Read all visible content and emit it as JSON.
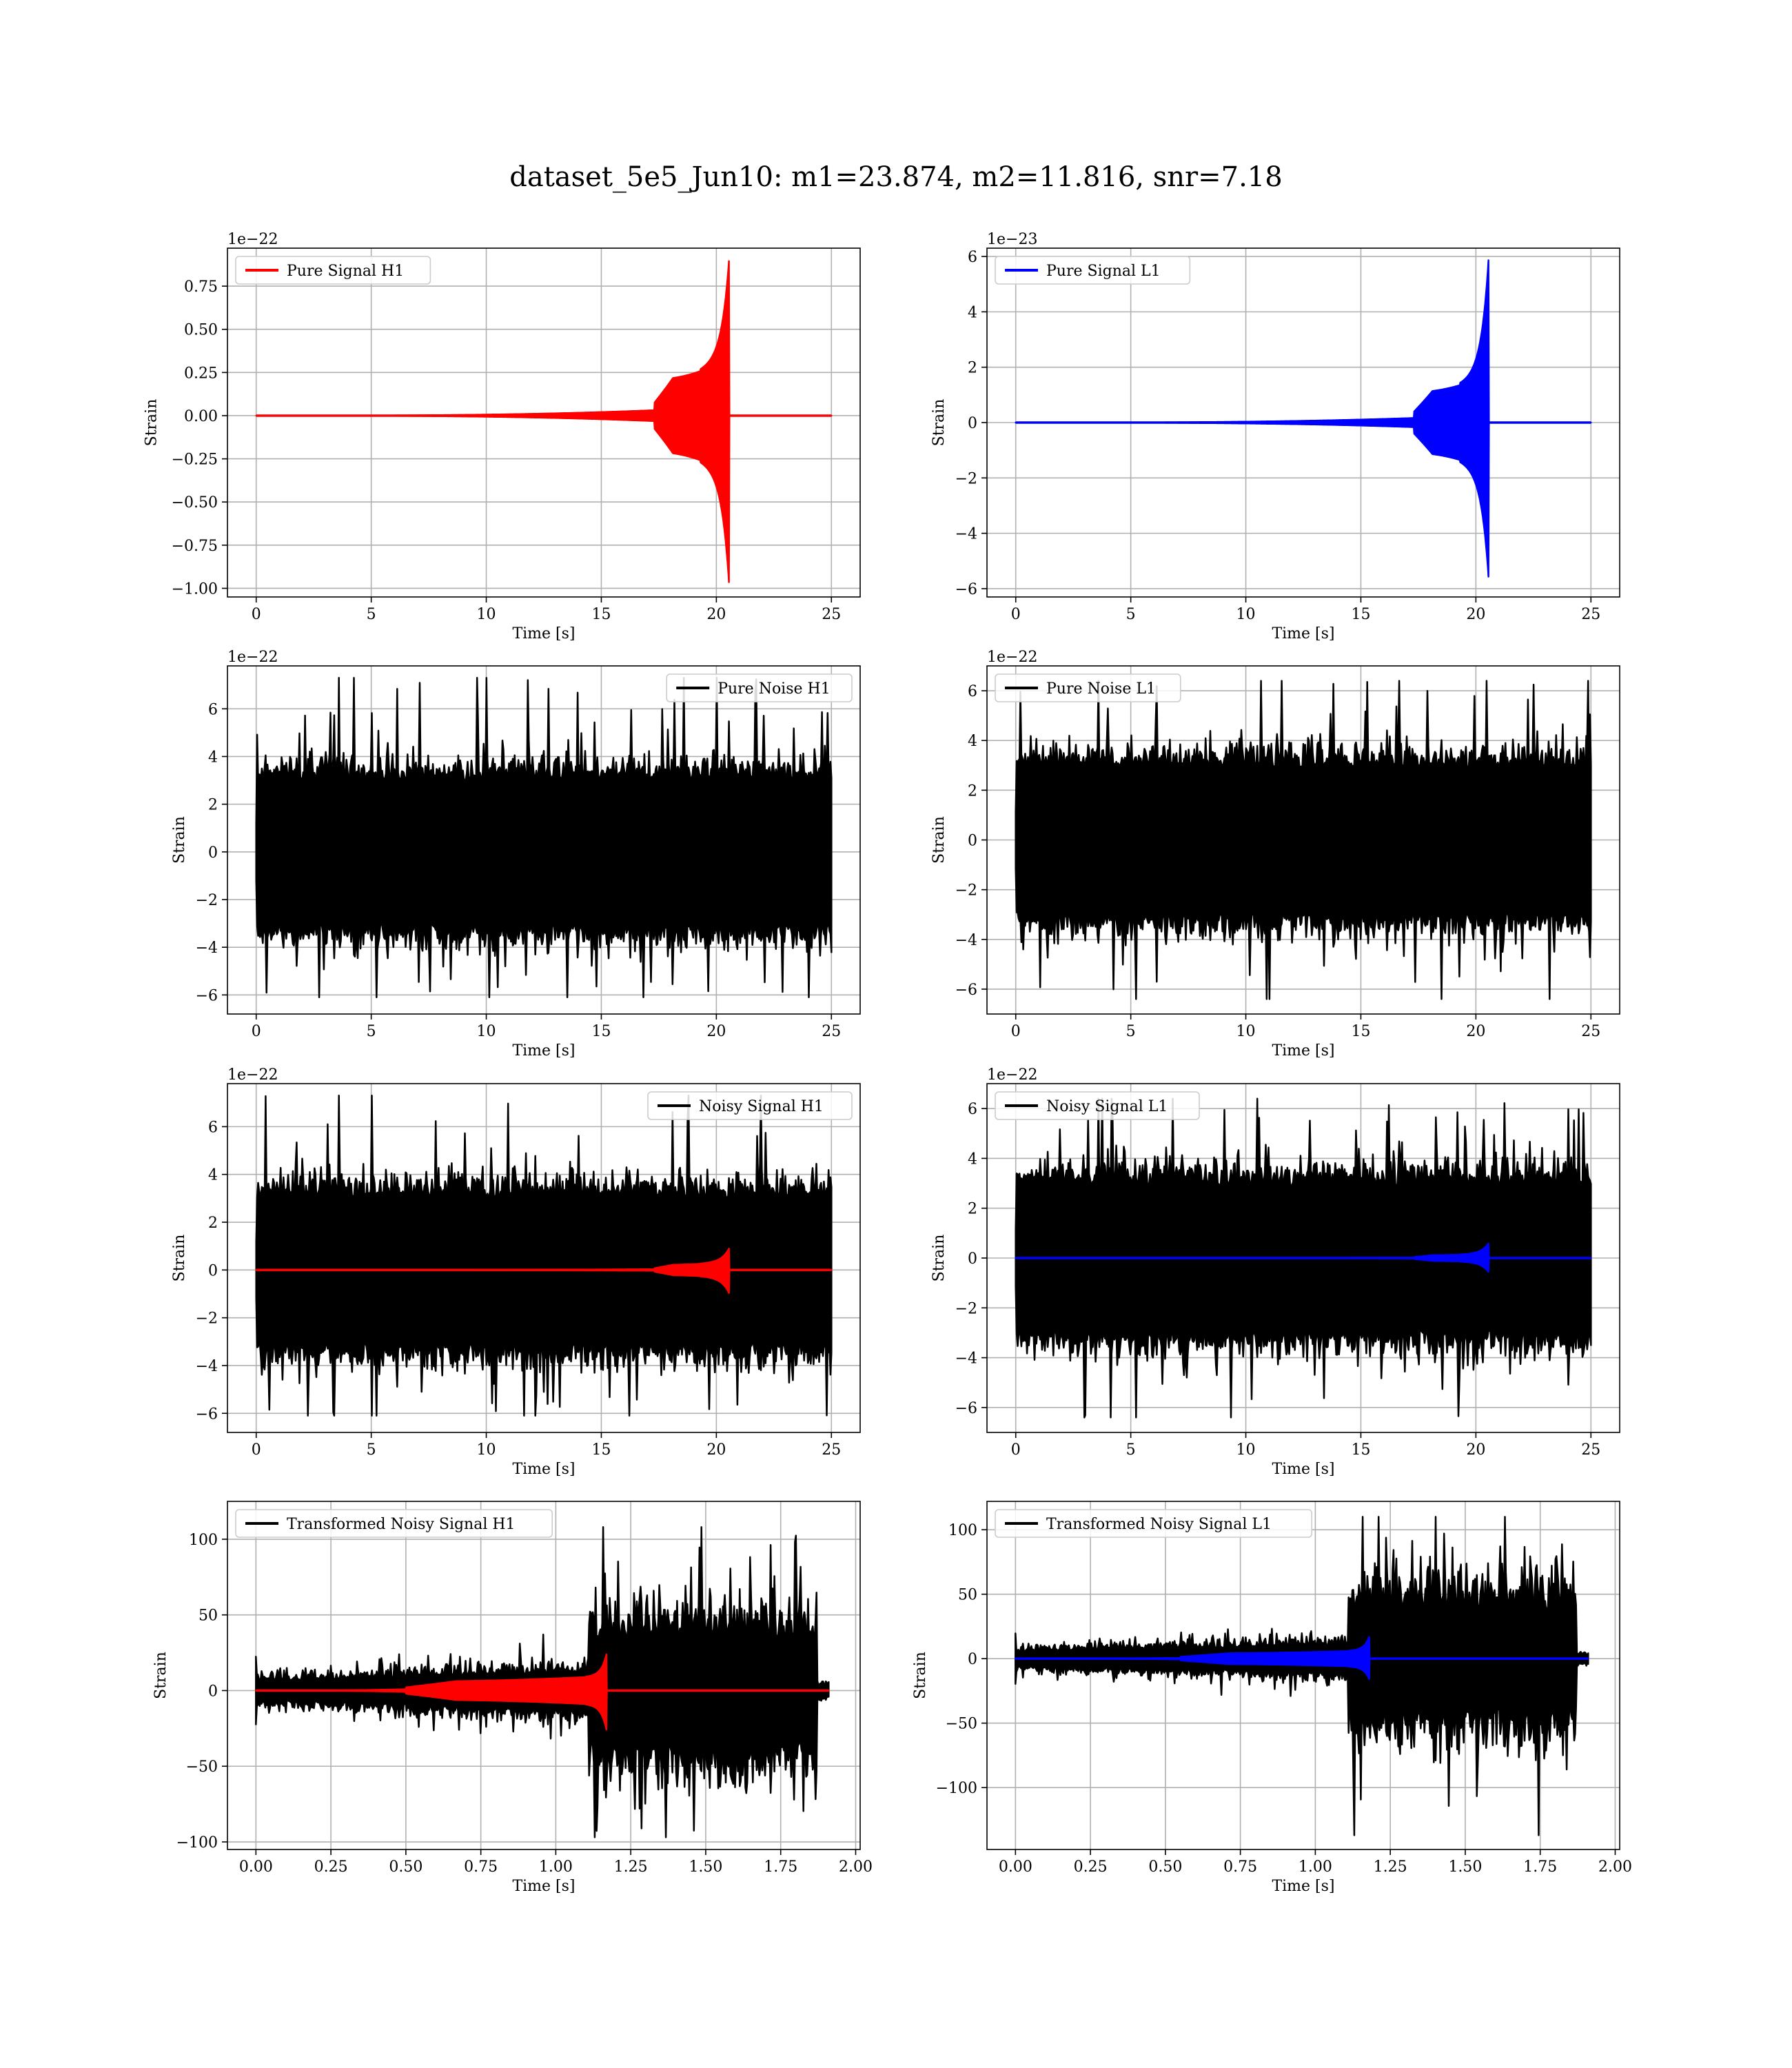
{
  "figure": {
    "title": "dataset_5e5_Jun10: m1=23.874, m2=11.816, snr=7.18"
  },
  "chart_data": [
    {
      "type": "line",
      "legend": "Pure Signal H1",
      "legend_position": "upper-left",
      "xlabel": "Time [s]",
      "ylabel": "Strain",
      "offset_text": "1e−22",
      "xlim": [
        -1.25,
        26.25
      ],
      "ylim": [
        -1.05,
        0.97
      ],
      "xticks": [
        0,
        5,
        10,
        15,
        20,
        25
      ],
      "xtick_labels": [
        "0",
        "5",
        "10",
        "15",
        "20",
        "25"
      ],
      "yticks": [
        -1.0,
        -0.75,
        -0.5,
        -0.25,
        0.0,
        0.25,
        0.5,
        0.75
      ],
      "ytick_labels": [
        "−1.00",
        "−0.75",
        "−0.50",
        "−0.25",
        "0.00",
        "0.25",
        "0.50",
        "0.75"
      ],
      "grid": true,
      "series": [
        {
          "kind": "chirp",
          "color": "#ff0000",
          "x_start": 0,
          "x_end": 25,
          "t_merge": 20.55,
          "plateau_start": 17.3,
          "plateau_amp": 0.21,
          "peak_top": 0.9,
          "peak_bottom": -0.97
        }
      ]
    },
    {
      "type": "line",
      "legend": "Pure Signal L1",
      "legend_position": "upper-left",
      "xlabel": "Time [s]",
      "ylabel": "Strain",
      "offset_text": "1e−23",
      "xlim": [
        -1.25,
        26.25
      ],
      "ylim": [
        -6.3,
        6.3
      ],
      "xticks": [
        0,
        5,
        10,
        15,
        20,
        25
      ],
      "xtick_labels": [
        "0",
        "5",
        "10",
        "15",
        "20",
        "25"
      ],
      "yticks": [
        -6,
        -4,
        -2,
        0,
        2,
        4,
        6
      ],
      "ytick_labels": [
        "−6",
        "−4",
        "−2",
        "0",
        "2",
        "4",
        "6"
      ],
      "grid": true,
      "series": [
        {
          "kind": "chirp",
          "color": "#0000ff",
          "x_start": 0,
          "x_end": 25,
          "t_merge": 20.55,
          "plateau_start": 17.3,
          "plateau_amp": 1.1,
          "peak_top": 5.9,
          "peak_bottom": -5.6
        }
      ]
    },
    {
      "type": "line",
      "legend": "Pure Noise H1",
      "legend_position": "upper-right",
      "xlabel": "Time [s]",
      "ylabel": "Strain",
      "offset_text": "1e−22",
      "xlim": [
        -1.25,
        26.25
      ],
      "ylim": [
        -6.8,
        7.8
      ],
      "xticks": [
        0,
        5,
        10,
        15,
        20,
        25
      ],
      "xtick_labels": [
        "0",
        "5",
        "10",
        "15",
        "20",
        "25"
      ],
      "yticks": [
        -6,
        -4,
        -2,
        0,
        2,
        4,
        6
      ],
      "ytick_labels": [
        "−6",
        "−4",
        "−2",
        "0",
        "2",
        "4",
        "6"
      ],
      "grid": true,
      "series": [
        {
          "kind": "noise",
          "color": "#000000",
          "x_start": 0,
          "x_end": 25,
          "body": 3.0,
          "spike": 7.3,
          "low": -6.1
        }
      ]
    },
    {
      "type": "line",
      "legend": "Pure Noise L1",
      "legend_position": "upper-left",
      "xlabel": "Time [s]",
      "ylabel": "Strain",
      "offset_text": "1e−22",
      "xlim": [
        -1.25,
        26.25
      ],
      "ylim": [
        -7.0,
        7.0
      ],
      "xticks": [
        0,
        5,
        10,
        15,
        20,
        25
      ],
      "xtick_labels": [
        "0",
        "5",
        "10",
        "15",
        "20",
        "25"
      ],
      "yticks": [
        -6,
        -4,
        -2,
        0,
        2,
        4,
        6
      ],
      "ytick_labels": [
        "−6",
        "−4",
        "−2",
        "0",
        "2",
        "4",
        "6"
      ],
      "grid": true,
      "series": [
        {
          "kind": "noise",
          "color": "#000000",
          "x_start": 0,
          "x_end": 25,
          "body": 2.9,
          "spike": 6.4,
          "low": -6.4
        }
      ]
    },
    {
      "type": "line",
      "legend": "Noisy Signal H1",
      "legend_position": "upper-right",
      "xlabel": "Time [s]",
      "ylabel": "Strain",
      "offset_text": "1e−22",
      "xlim": [
        -1.25,
        26.25
      ],
      "ylim": [
        -6.8,
        7.8
      ],
      "xticks": [
        0,
        5,
        10,
        15,
        20,
        25
      ],
      "xtick_labels": [
        "0",
        "5",
        "10",
        "15",
        "20",
        "25"
      ],
      "yticks": [
        -6,
        -4,
        -2,
        0,
        2,
        4,
        6
      ],
      "ytick_labels": [
        "−6",
        "−4",
        "−2",
        "0",
        "2",
        "4",
        "6"
      ],
      "grid": true,
      "series": [
        {
          "kind": "noise",
          "color": "#000000",
          "x_start": 0,
          "x_end": 25,
          "body": 3.0,
          "spike": 7.3,
          "low": -6.1
        },
        {
          "kind": "chirp",
          "color": "#ff0000",
          "x_start": 0,
          "x_end": 25,
          "t_merge": 20.55,
          "plateau_start": 17.3,
          "plateau_amp": 0.21,
          "peak_top": 0.9,
          "peak_bottom": -0.97
        }
      ]
    },
    {
      "type": "line",
      "legend": "Noisy Signal L1",
      "legend_position": "upper-left",
      "xlabel": "Time [s]",
      "ylabel": "Strain",
      "offset_text": "1e−22",
      "xlim": [
        -1.25,
        26.25
      ],
      "ylim": [
        -7.0,
        7.0
      ],
      "xticks": [
        0,
        5,
        10,
        15,
        20,
        25
      ],
      "xtick_labels": [
        "0",
        "5",
        "10",
        "15",
        "20",
        "25"
      ],
      "yticks": [
        -6,
        -4,
        -2,
        0,
        2,
        4,
        6
      ],
      "ytick_labels": [
        "−6",
        "−4",
        "−2",
        "0",
        "2",
        "4",
        "6"
      ],
      "grid": true,
      "series": [
        {
          "kind": "noise",
          "color": "#000000",
          "x_start": 0,
          "x_end": 25,
          "body": 2.9,
          "spike": 6.4,
          "low": -6.4
        },
        {
          "kind": "chirp",
          "color": "#0000ff",
          "x_start": 0,
          "x_end": 25,
          "t_merge": 20.55,
          "plateau_start": 17.3,
          "plateau_amp": 0.11,
          "peak_top": 0.59,
          "peak_bottom": -0.56
        }
      ]
    },
    {
      "type": "line",
      "legend": "Transformed Noisy Signal H1",
      "legend_position": "upper-left",
      "xlabel": "Time [s]",
      "ylabel": "Strain",
      "offset_text": "",
      "xlim": [
        -0.095,
        2.015
      ],
      "ylim": [
        -105,
        125
      ],
      "xticks": [
        0,
        0.25,
        0.5,
        0.75,
        1.0,
        1.25,
        1.5,
        1.75,
        2.0
      ],
      "xtick_labels": [
        "0.00",
        "0.25",
        "0.50",
        "0.75",
        "1.00",
        "1.25",
        "1.50",
        "1.75",
        "2.00"
      ],
      "yticks": [
        -100,
        -50,
        0,
        50,
        100
      ],
      "ytick_labels": [
        "−100",
        "−50",
        "0",
        "50",
        "100"
      ],
      "grid": true,
      "series": [
        {
          "kind": "tnoise",
          "color": "#000000",
          "x_start": 0,
          "x_end": 1.91,
          "t_jump": 1.11,
          "pre_amp": 8,
          "post_amp": 45,
          "spike": 108,
          "low": -97,
          "taper_start": 1.87
        },
        {
          "kind": "chirp",
          "color": "#ff0000",
          "x_start": 0,
          "x_end": 1.91,
          "t_merge": 1.17,
          "plateau_start": 0.5,
          "plateau_amp": 6,
          "peak_top": 25,
          "peak_bottom": -27
        }
      ]
    },
    {
      "type": "line",
      "legend": "Transformed Noisy Signal L1",
      "legend_position": "upper-left",
      "xlabel": "Time [s]",
      "ylabel": "Strain",
      "offset_text": "",
      "xlim": [
        -0.095,
        2.015
      ],
      "ylim": [
        -148,
        122
      ],
      "xticks": [
        0,
        0.25,
        0.5,
        0.75,
        1.0,
        1.25,
        1.5,
        1.75,
        2.0
      ],
      "xtick_labels": [
        "0.00",
        "0.25",
        "0.50",
        "0.75",
        "1.00",
        "1.25",
        "1.50",
        "1.75",
        "2.00"
      ],
      "yticks": [
        -100,
        -50,
        0,
        50,
        100
      ],
      "ytick_labels": [
        "−100",
        "−50",
        "0",
        "50",
        "100"
      ],
      "grid": true,
      "series": [
        {
          "kind": "tnoise",
          "color": "#000000",
          "x_start": 0,
          "x_end": 1.91,
          "t_jump": 1.11,
          "pre_amp": 7,
          "post_amp": 50,
          "spike": 110,
          "low": -137,
          "taper_start": 1.87
        },
        {
          "kind": "chirp",
          "color": "#0000ff",
          "x_start": 0,
          "x_end": 1.91,
          "t_merge": 1.18,
          "plateau_start": 0.55,
          "plateau_amp": 4,
          "peak_top": 17,
          "peak_bottom": -16
        }
      ]
    }
  ]
}
